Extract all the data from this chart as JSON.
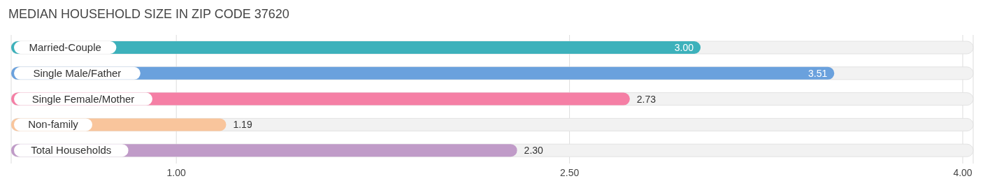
{
  "chart_data": {
    "type": "bar",
    "orientation": "horizontal",
    "title": "MEDIAN HOUSEHOLD SIZE IN ZIP CODE 37620",
    "categories": [
      "Married-Couple",
      "Single Male/Father",
      "Single Female/Mother",
      "Non-family",
      "Total Households"
    ],
    "values": [
      3.0,
      3.51,
      2.73,
      1.19,
      2.3
    ],
    "colors": [
      "#3db1bb",
      "#6aa1dd",
      "#f57fa5",
      "#f9c59c",
      "#c09bc8"
    ],
    "value_labels": [
      "3.00",
      "3.51",
      "2.73",
      "1.19",
      "2.30"
    ],
    "xlim": [
      0.37,
      4.04
    ],
    "xticks": [
      {
        "value": 1,
        "label": "1.00"
      },
      {
        "value": 2.5,
        "label": "2.50"
      },
      {
        "value": 4,
        "label": "4.00"
      }
    ],
    "grid": "x"
  }
}
